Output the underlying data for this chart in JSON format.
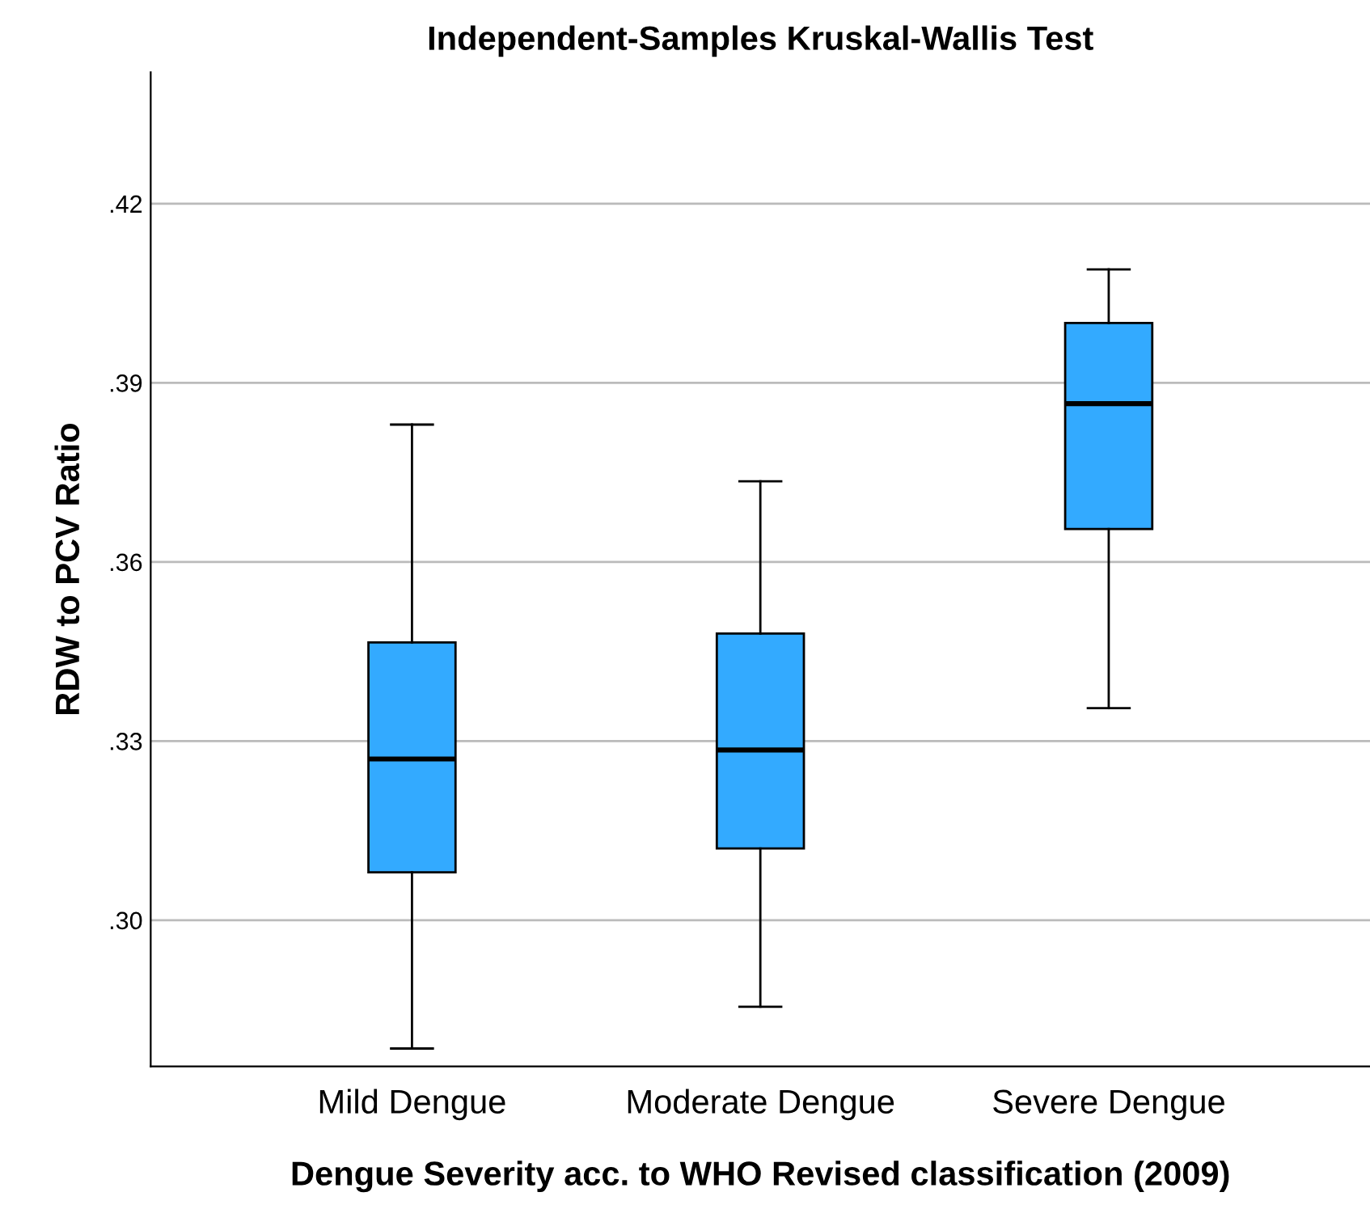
{
  "chart_data": {
    "type": "box",
    "title": "Independent-Samples Kruskal-Wallis Test",
    "xlabel": "Dengue Severity acc. to WHO Revised classification (2009)",
    "ylabel": "RDW to PCV Ratio",
    "categories": [
      "Mild Dengue",
      "Moderate Dengue",
      "Severe Dengue"
    ],
    "color": "#33aaff",
    "boxes": [
      {
        "low": 0.2785,
        "q1": 0.308,
        "median": 0.327,
        "q3": 0.3465,
        "high": 0.383
      },
      {
        "low": 0.2855,
        "q1": 0.312,
        "median": 0.3285,
        "q3": 0.348,
        "high": 0.3735
      },
      {
        "low": 0.3355,
        "q1": 0.3655,
        "median": 0.3865,
        "q3": 0.4,
        "high": 0.409
      }
    ],
    "ylim": [
      0.2755,
      0.442
    ],
    "yticks": [
      {
        "value": 0.3,
        "label": ".30"
      },
      {
        "value": 0.33,
        "label": ".33"
      },
      {
        "value": 0.36,
        "label": ".36"
      },
      {
        "value": 0.39,
        "label": ".39"
      },
      {
        "value": 0.42,
        "label": ".42"
      }
    ],
    "grid": "y"
  }
}
